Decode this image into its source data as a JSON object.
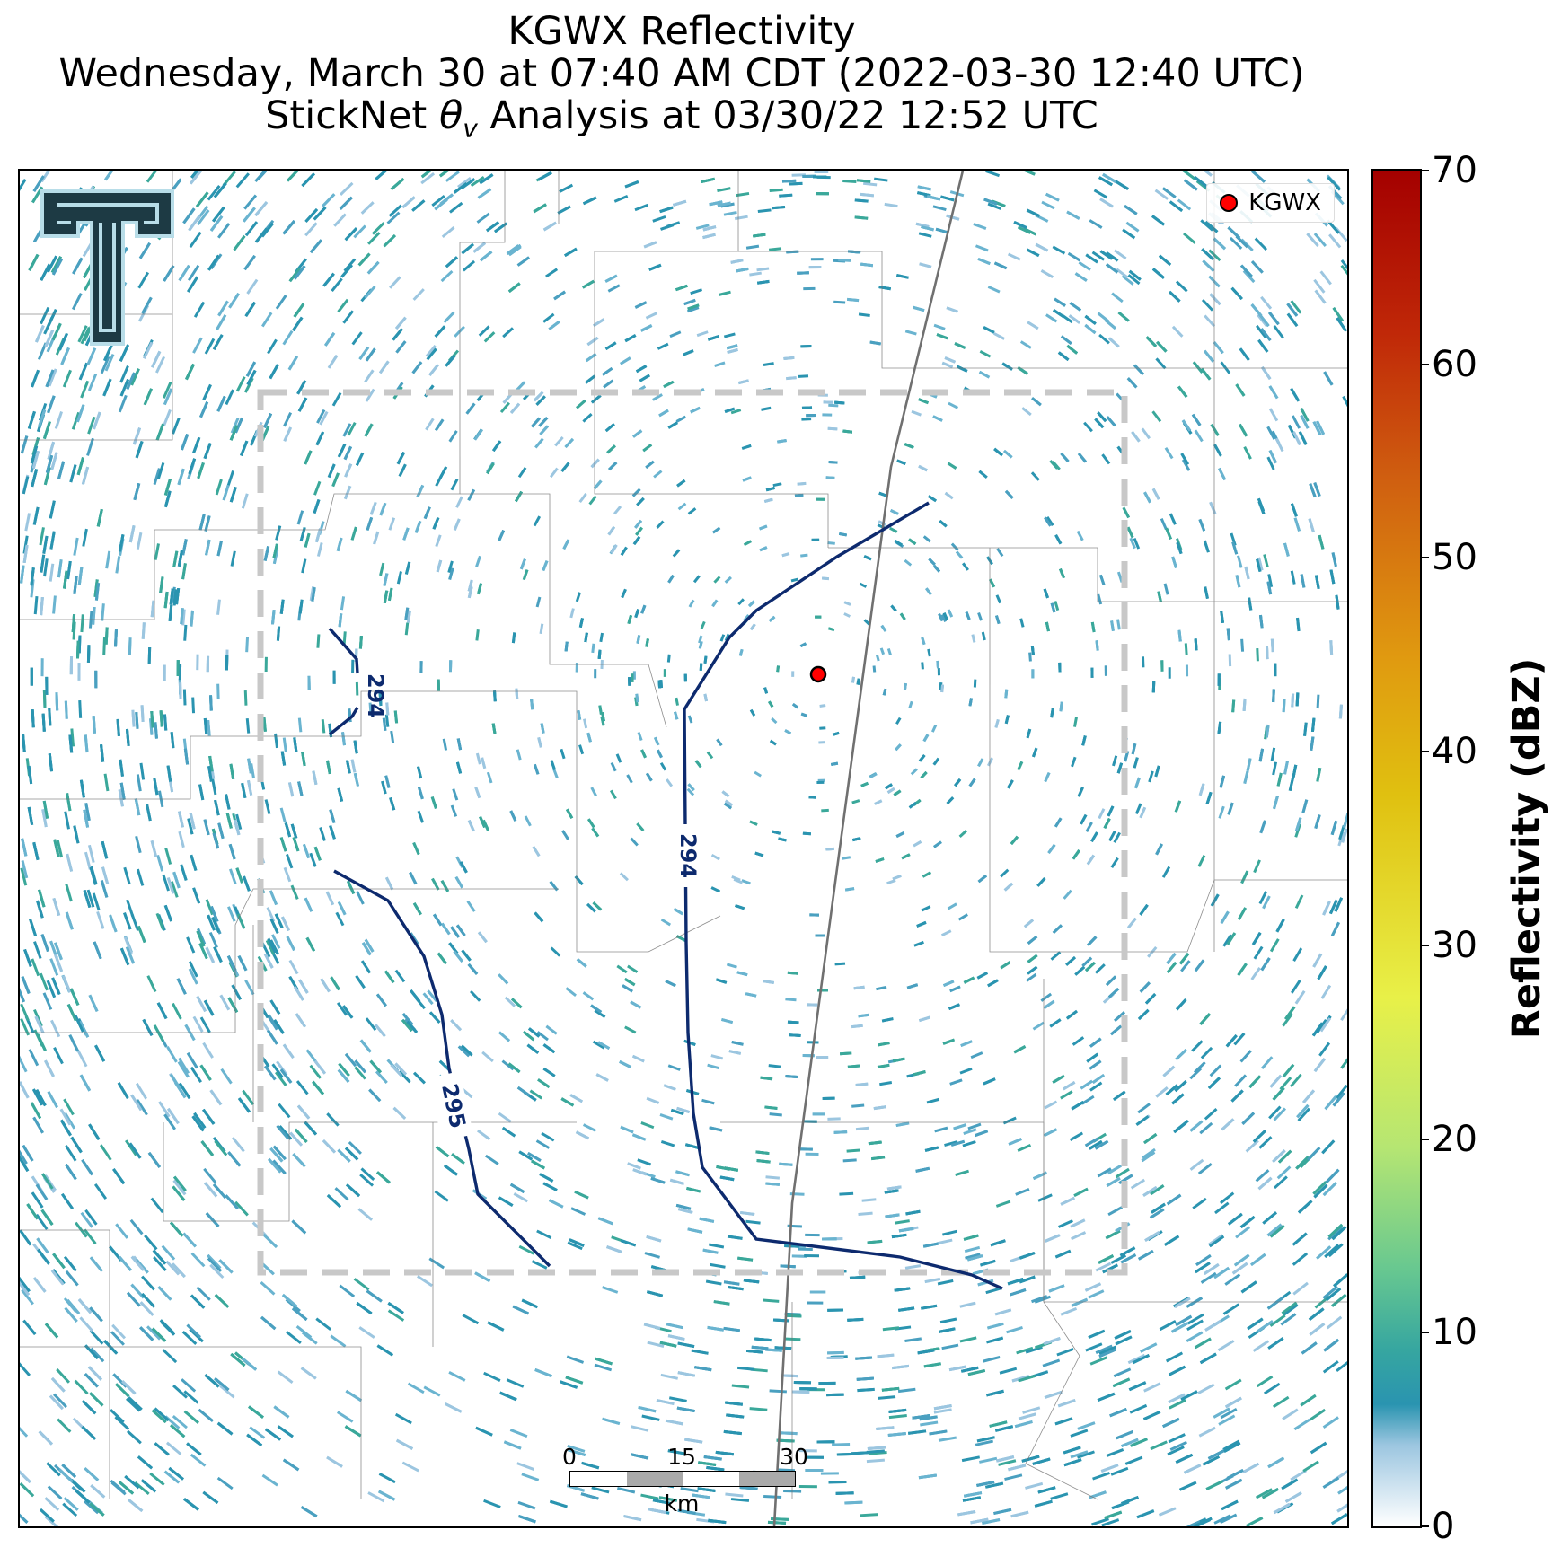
{
  "title": {
    "line1": "KGWX Reflectivity",
    "line2": "Wednesday, March 30 at 07:40 AM CDT (2022-03-30 12:40 UTC)",
    "line3_prefix": "StickNet ",
    "line3_symbol": "θ",
    "line3_sub": "v",
    "line3_suffix": " Analysis at 03/30/22 12:52 UTC"
  },
  "legend": {
    "label": "KGWX",
    "marker_color": "#ff0000"
  },
  "logo": {
    "description": "double-T-logo"
  },
  "scalebar": {
    "ticks": [
      "0",
      "15",
      "30"
    ],
    "unit": "km"
  },
  "colorbar": {
    "title": "Reflectivity (dBZ)",
    "ticks": [
      "0",
      "10",
      "20",
      "30",
      "40",
      "50",
      "60",
      "70"
    ],
    "min": 0,
    "max": 70
  },
  "contours": [
    {
      "label": "294"
    },
    {
      "label": "294"
    },
    {
      "label": "295"
    }
  ],
  "colors": {
    "contour": "#0d2a6e",
    "echo_primary": "#2a94b0",
    "echo_secondary": "#3aa89a",
    "echo_light": "#9cc6e0",
    "analysis_box": "#c8c8c8",
    "radar_site": "#ff0000"
  }
}
